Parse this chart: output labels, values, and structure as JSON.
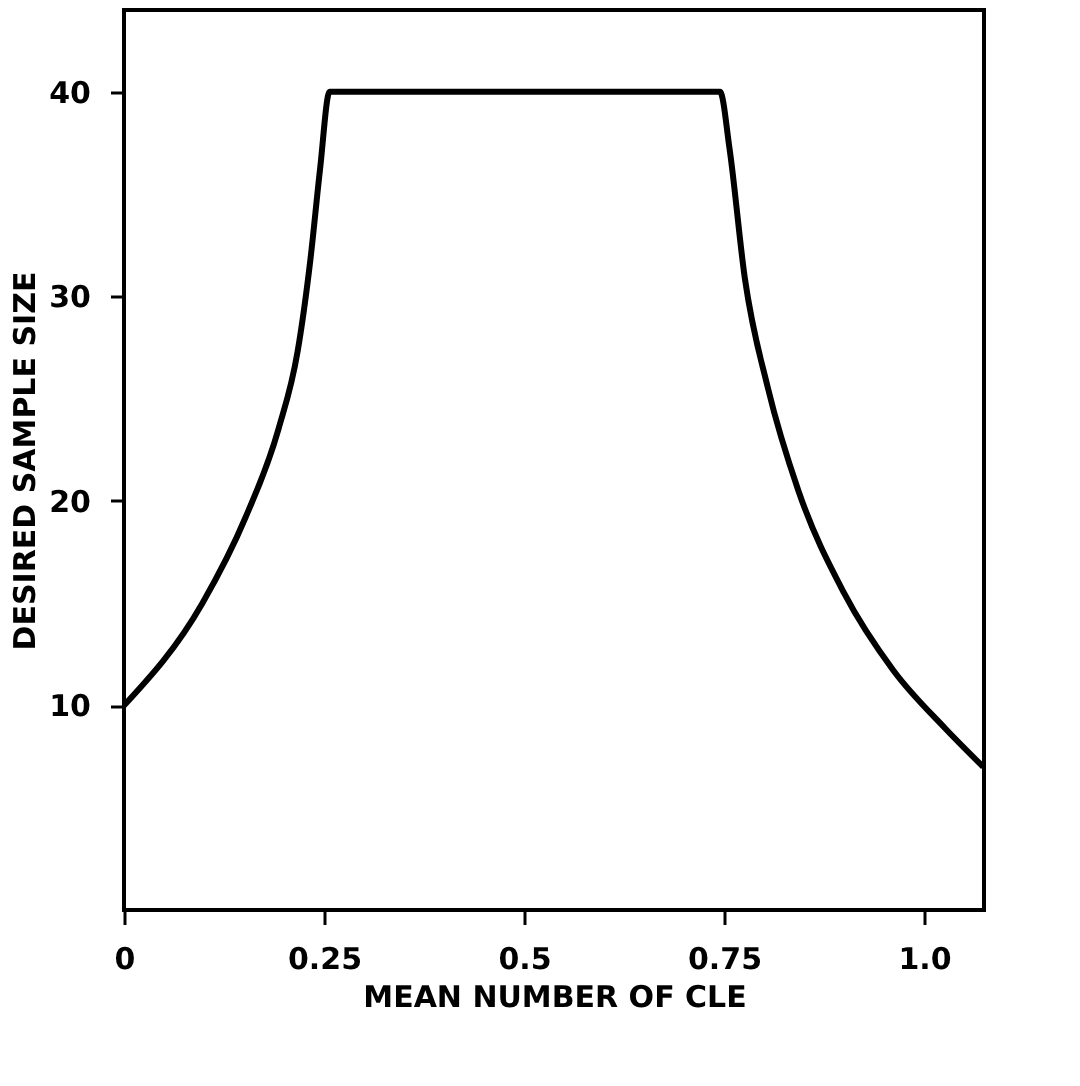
{
  "chart_data": {
    "type": "line",
    "xlabel": "MEAN NUMBER OF CLE",
    "ylabel": "DESIRED SAMPLE SIZE",
    "x": [
      0,
      0.098,
      0.152,
      0.193,
      0.217,
      0.233,
      0.245,
      0.257,
      0.745,
      0.757,
      0.776,
      0.805,
      0.843,
      0.9,
      0.962,
      1.026,
      1.074
    ],
    "series": [
      {
        "color": "#000000",
        "values": [
          10,
          15,
          19.2,
          23.5,
          27.3,
          31.8,
          36.2,
          40,
          40,
          37.2,
          30.9,
          25.5,
          20.5,
          15.5,
          11.7,
          8.9,
          7
        ]
      }
    ],
    "xlim": [
      0,
      1.075
    ],
    "ylim": [
      0,
      44
    ],
    "xticks": [
      0,
      0.25,
      0.5,
      0.75,
      {
        "value": 1.0,
        "label": "1.0"
      }
    ],
    "yticks": [
      10,
      20,
      30,
      40
    ],
    "grid": false,
    "marker": "none",
    "line_style": "solid"
  }
}
